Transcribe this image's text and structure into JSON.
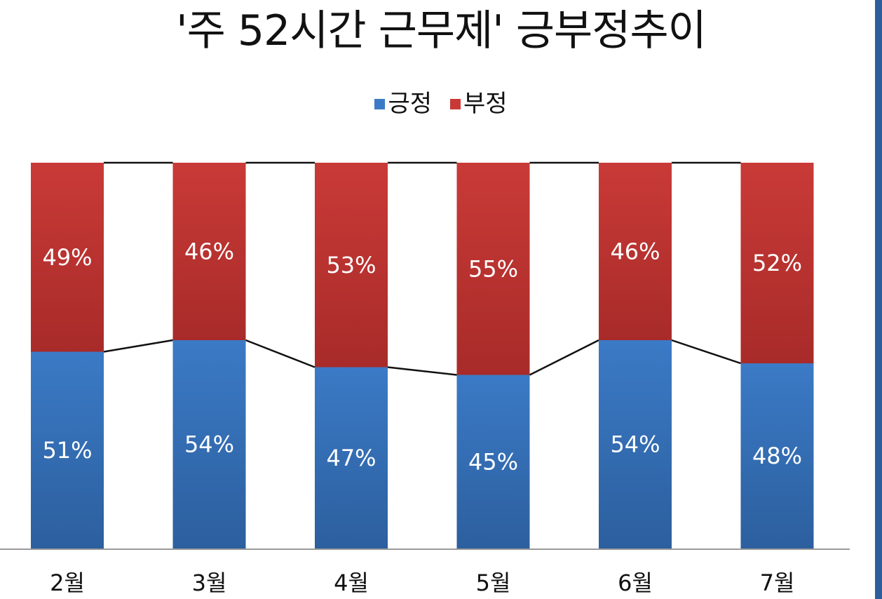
{
  "chart_data": {
    "type": "bar",
    "stacked": true,
    "percent_stacked": true,
    "title": "'주 52시간 근무제' 긍부정추이",
    "categories": [
      "2월",
      "3월",
      "4월",
      "5월",
      "6월",
      "7월"
    ],
    "series": [
      {
        "name": "긍정",
        "color": "#3b7ac6",
        "values": [
          51,
          54,
          47,
          45,
          54,
          48
        ]
      },
      {
        "name": "부정",
        "color": "#c93a37",
        "values": [
          49,
          46,
          53,
          55,
          46,
          52
        ]
      }
    ],
    "value_suffix": "%",
    "ylim": [
      0,
      100
    ],
    "legend": "top-center",
    "grid": false,
    "series_lines": true
  }
}
